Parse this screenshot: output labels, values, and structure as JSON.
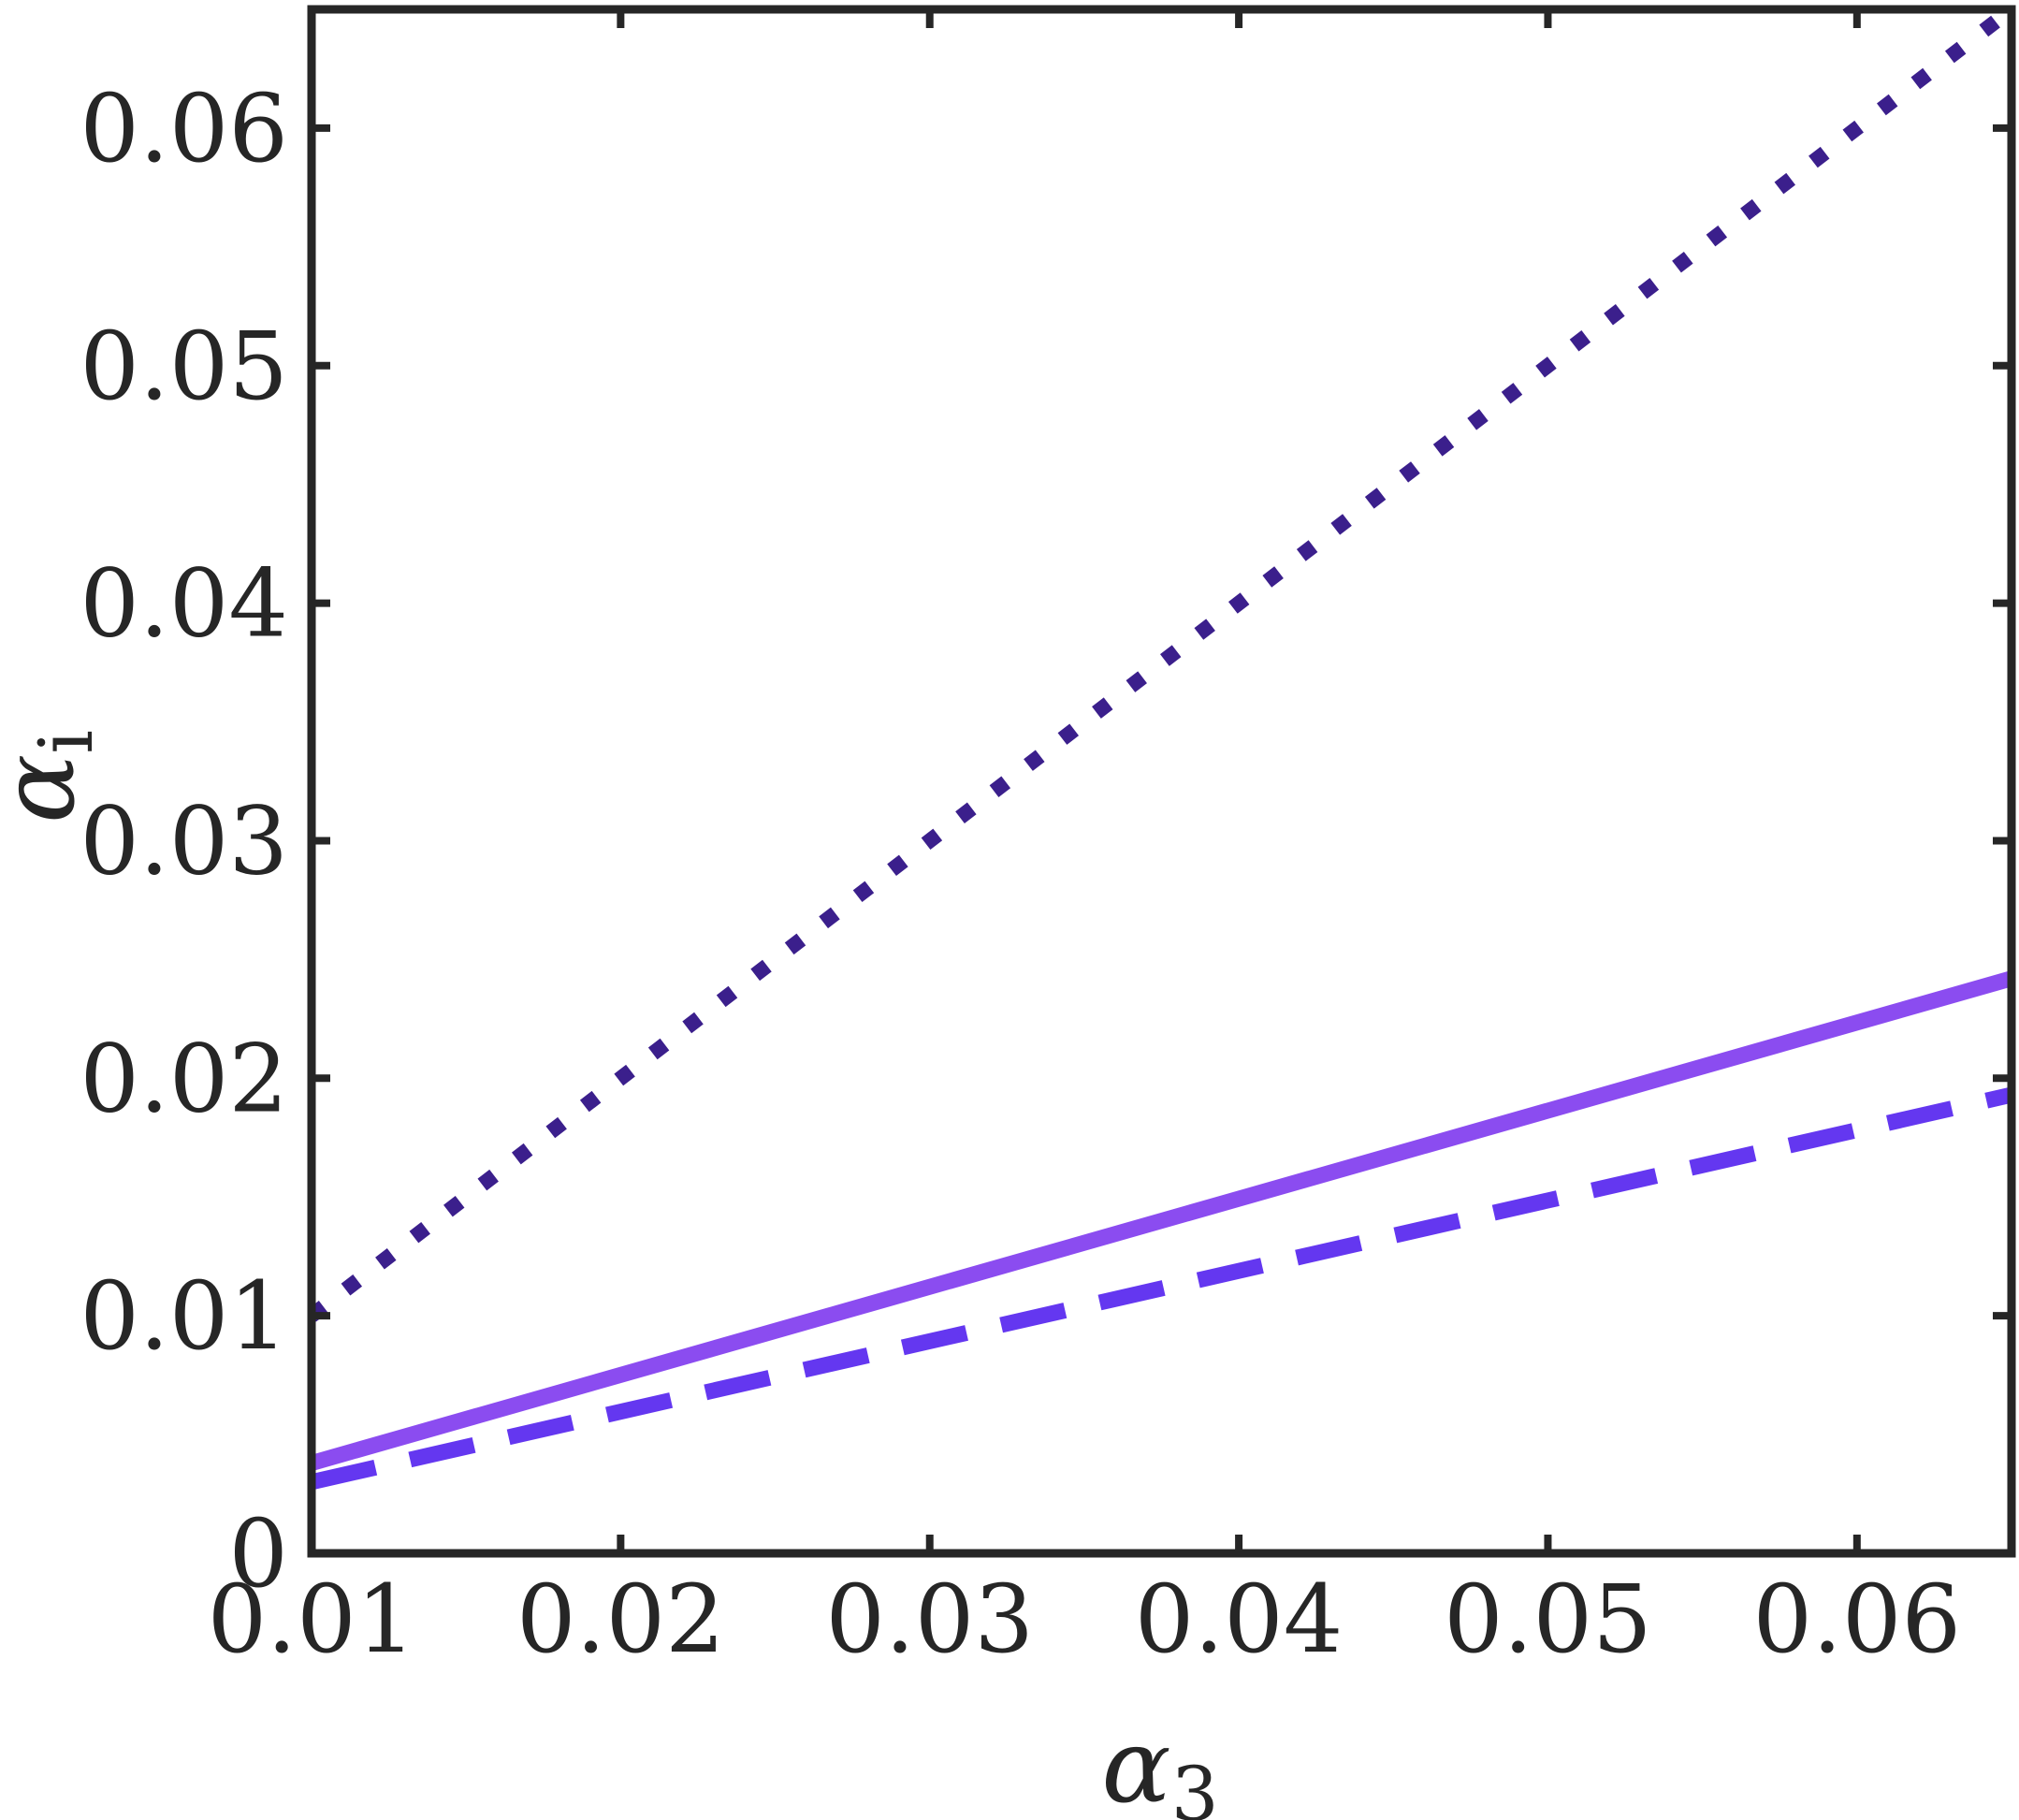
{
  "chart_data": {
    "type": "line",
    "xlabel": {
      "symbol": "α",
      "subscript": "3"
    },
    "ylabel": {
      "symbol": "α",
      "subscript": "i"
    },
    "xlim": [
      0.01,
      0.065
    ],
    "ylim": [
      0,
      0.065
    ],
    "xticks": [
      "0.01",
      "0.02",
      "0.03",
      "0.04",
      "0.05",
      "0.06"
    ],
    "yticks": [
      "0",
      "0.01",
      "0.02",
      "0.03",
      "0.04",
      "0.05",
      "0.06"
    ],
    "xtick_values": [
      0.01,
      0.02,
      0.03,
      0.04,
      0.05,
      0.06
    ],
    "ytick_values": [
      0,
      0.01,
      0.02,
      0.03,
      0.04,
      0.05,
      0.06
    ],
    "grid": false,
    "legend": "none",
    "series": [
      {
        "style": "dotted",
        "color": "#3b1f8c",
        "x": [
          0.01,
          0.065
        ],
        "y": [
          0.01,
          0.065
        ]
      },
      {
        "style": "solid",
        "color": "#8b4cf0",
        "x": [
          0.01,
          0.065
        ],
        "y": [
          0.0038,
          0.0242
        ]
      },
      {
        "style": "dashed",
        "color": "#6437f0",
        "x": [
          0.01,
          0.065
        ],
        "y": [
          0.003,
          0.0193
        ]
      }
    ]
  }
}
